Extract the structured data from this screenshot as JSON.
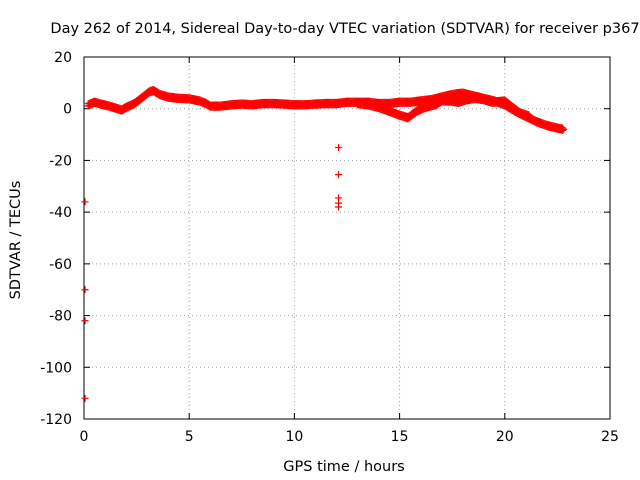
{
  "chart_data": {
    "type": "scatter",
    "title": "Day 262 of 2014, Sidereal Day-to-day VTEC variation (SDTVAR) for receiver p367",
    "xlabel": "GPS time / hours",
    "ylabel": "SDTVAR / TECUs",
    "xlim": [
      0,
      25
    ],
    "ylim": [
      -120,
      20
    ],
    "grid": true,
    "marker": "+",
    "series_color": "#ff0000",
    "x_ticks": [
      0,
      5,
      10,
      15,
      20,
      25
    ],
    "y_ticks": [
      20,
      0,
      -20,
      -40,
      -60,
      -80,
      -100,
      -120
    ],
    "x_tick_labels": [
      "0",
      "5",
      "10",
      "15",
      "20",
      "25"
    ],
    "y_tick_labels": [
      "20",
      "0",
      "-20",
      "-40",
      "-60",
      "-80",
      "-100",
      "-120"
    ],
    "series": [
      {
        "name": "main track",
        "points": [
          [
            0.2,
            1.5
          ],
          [
            0.5,
            2.5
          ],
          [
            0.8,
            1.8
          ],
          [
            1.2,
            1.0
          ],
          [
            1.6,
            0.0
          ],
          [
            1.8,
            -0.5
          ],
          [
            2.0,
            0.5
          ],
          [
            2.4,
            2.0
          ],
          [
            2.8,
            4.5
          ],
          [
            3.1,
            6.5
          ],
          [
            3.3,
            7.0
          ],
          [
            3.6,
            5.5
          ],
          [
            4.0,
            4.5
          ],
          [
            4.5,
            4.0
          ],
          [
            5.0,
            3.8
          ],
          [
            5.5,
            3.0
          ],
          [
            5.8,
            2.0
          ],
          [
            6.0,
            1.0
          ],
          [
            6.5,
            1.0
          ],
          [
            7.0,
            1.5
          ],
          [
            7.5,
            1.8
          ],
          [
            8.0,
            1.5
          ],
          [
            8.5,
            2.0
          ],
          [
            9.0,
            2.0
          ],
          [
            9.5,
            1.8
          ],
          [
            10.0,
            1.5
          ],
          [
            10.5,
            1.5
          ],
          [
            11.0,
            1.8
          ],
          [
            11.5,
            2.0
          ],
          [
            12.0,
            2.0
          ],
          [
            12.5,
            2.5
          ],
          [
            13.0,
            2.5
          ],
          [
            13.5,
            2.5
          ],
          [
            14.0,
            2.0
          ],
          [
            14.5,
            2.0
          ],
          [
            15.0,
            2.5
          ],
          [
            15.5,
            2.5
          ],
          [
            16.0,
            3.0
          ],
          [
            16.5,
            3.5
          ],
          [
            17.0,
            4.5
          ],
          [
            17.5,
            5.5
          ],
          [
            18.0,
            6.0
          ],
          [
            18.5,
            5.0
          ],
          [
            19.0,
            4.0
          ],
          [
            19.5,
            3.0
          ],
          [
            20.0,
            1.5
          ],
          [
            20.5,
            -1.0
          ],
          [
            21.0,
            -3.0
          ],
          [
            21.5,
            -5.0
          ],
          [
            22.0,
            -6.5
          ],
          [
            22.5,
            -7.5
          ],
          [
            22.8,
            -8.0
          ]
        ]
      },
      {
        "name": "secondary track",
        "points": [
          [
            13.0,
            2.0
          ],
          [
            13.5,
            1.5
          ],
          [
            14.0,
            0.5
          ],
          [
            14.5,
            -1.0
          ],
          [
            15.0,
            -2.5
          ],
          [
            15.4,
            -3.5
          ],
          [
            15.8,
            -1.0
          ],
          [
            16.2,
            0.5
          ],
          [
            16.7,
            1.5
          ],
          [
            17.0,
            3.0
          ],
          [
            17.4,
            3.0
          ],
          [
            17.8,
            2.5
          ],
          [
            18.2,
            3.5
          ],
          [
            18.6,
            4.0
          ],
          [
            19.0,
            3.5
          ],
          [
            19.4,
            2.5
          ],
          [
            20.0,
            3.0
          ],
          [
            20.3,
            1.0
          ],
          [
            20.7,
            -1.5
          ],
          [
            21.2,
            -3.0
          ]
        ]
      },
      {
        "name": "outliers",
        "points": [
          [
            0.05,
            -36
          ],
          [
            0.05,
            -70
          ],
          [
            0.05,
            -82
          ],
          [
            0.05,
            -112
          ],
          [
            12.1,
            -15
          ],
          [
            12.1,
            -25.5
          ],
          [
            12.1,
            -34.5
          ],
          [
            12.1,
            -36.5
          ],
          [
            12.1,
            -38
          ]
        ]
      }
    ]
  }
}
